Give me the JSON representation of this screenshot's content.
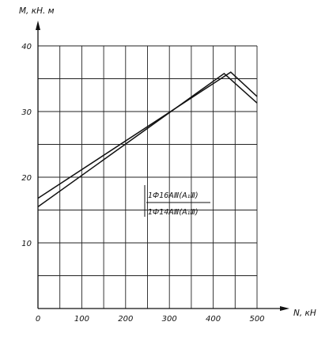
{
  "chart_data": {
    "type": "line",
    "xlabel": "N, кН",
    "ylabel": "M, кН. м",
    "xlim": [
      0,
      500
    ],
    "ylim": [
      0,
      40
    ],
    "x_ticks": [
      "0",
      "100",
      "200",
      "300",
      "400",
      "500"
    ],
    "y_ticks": [
      "10",
      "20",
      "30",
      "40"
    ],
    "grid": true,
    "series": [
      {
        "name": "1Ф16АⅢ(А₁Ⅲ)",
        "x": [
          0,
          440,
          500
        ],
        "y": [
          16.8,
          36.0,
          32.3
        ]
      },
      {
        "name": "1Ф14АⅢ(А₁Ⅲ)",
        "x": [
          0,
          425,
          500
        ],
        "y": [
          15.5,
          35.8,
          31.3
        ]
      }
    ],
    "legend": "center-right"
  },
  "colors": {
    "ink": "#111111",
    "background": "#ffffff"
  }
}
